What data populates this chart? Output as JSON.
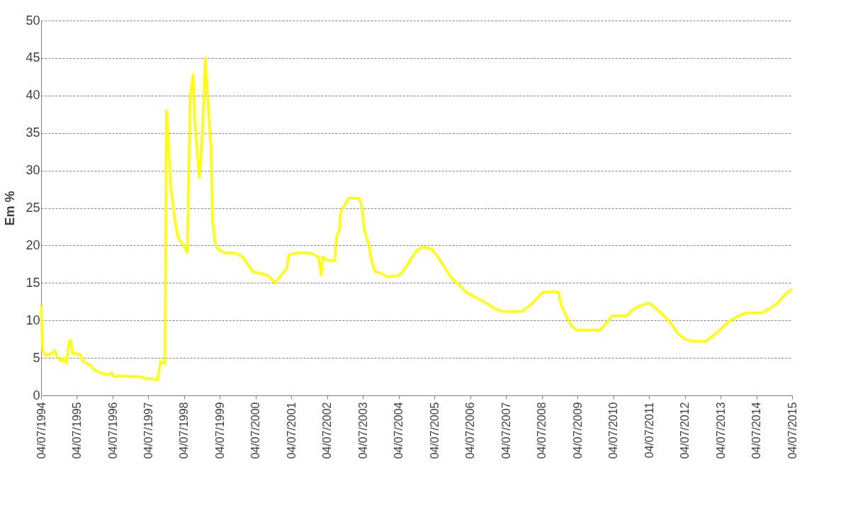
{
  "chart_data": {
    "type": "line",
    "ylabel": "Em %",
    "x": [
      "1994-07-04",
      "1994-07-19",
      "1994-08-19",
      "1994-10-19",
      "1994-11-19",
      "1994-12-19",
      "1995-02-04",
      "1995-02-19",
      "1995-03-19",
      "1995-04-04",
      "1995-04-19",
      "1995-05-04",
      "1995-05-19",
      "1995-08-04",
      "1995-09-04",
      "1995-11-19",
      "1995-12-19",
      "1996-03-04",
      "1996-05-19",
      "1996-06-19",
      "1996-07-19",
      "1996-10-04",
      "1997-01-19",
      "1997-04-04",
      "1997-06-19",
      "1997-08-19",
      "1997-10-04",
      "1997-11-04",
      "1997-12-19",
      "1998-01-04",
      "1998-01-19",
      "1998-02-19",
      "1998-04-04",
      "1998-05-04",
      "1998-07-19",
      "1998-08-04",
      "1998-09-04",
      "1998-10-04",
      "1998-10-19",
      "1998-12-04",
      "1998-12-19",
      "1999-01-19",
      "1999-02-04",
      "1999-03-04",
      "1999-04-04",
      "1999-04-19",
      "1999-05-19",
      "1999-06-19",
      "1999-08-19",
      "1999-12-04",
      "2000-02-19",
      "2000-06-04",
      "2000-11-04",
      "2001-01-19",
      "2001-03-19",
      "2001-05-19",
      "2001-06-04",
      "2001-08-19",
      "2002-01-04",
      "2002-04-04",
      "2002-05-04",
      "2002-05-19",
      "2002-07-04",
      "2002-09-19",
      "2002-10-04",
      "2002-11-04",
      "2002-11-19",
      "2003-01-04",
      "2003-02-04",
      "2003-05-19",
      "2003-06-19",
      "2003-07-19",
      "2003-09-04",
      "2003-09-19",
      "2003-11-04",
      "2004-01-19",
      "2004-03-04",
      "2004-07-04",
      "2004-08-19",
      "2004-10-04",
      "2004-11-19",
      "2005-01-04",
      "2005-03-04",
      "2005-06-04",
      "2005-08-04",
      "2005-10-19",
      "2005-12-19",
      "2006-03-04",
      "2006-05-19",
      "2006-08-04",
      "2006-11-19",
      "2007-03-19",
      "2007-05-19",
      "2007-12-19",
      "2008-03-04",
      "2008-05-19",
      "2008-07-19",
      "2008-12-19",
      "2009-01-19",
      "2009-03-19",
      "2009-05-04",
      "2009-07-04",
      "2010-02-19",
      "2010-04-19",
      "2010-06-19",
      "2010-11-19",
      "2011-01-04",
      "2011-03-19",
      "2011-06-04",
      "2011-07-04",
      "2011-09-19",
      "2011-12-04",
      "2012-02-19",
      "2012-04-19",
      "2012-07-04",
      "2012-09-19",
      "2013-02-04",
      "2013-04-19",
      "2013-07-04",
      "2013-09-19",
      "2014-01-04",
      "2014-03-19",
      "2014-09-04",
      "2014-11-19",
      "2015-02-04",
      "2015-04-19",
      "2015-07-04"
    ],
    "series": [
      {
        "color": "#ffff00",
        "values": [
          12,
          6,
          5.3,
          5.6,
          6,
          5,
          4.5,
          5,
          4.3,
          6,
          7.3,
          7.3,
          5.6,
          5.5,
          4.5,
          4,
          3.5,
          3,
          2.7,
          3,
          2.5,
          2.6,
          2.5,
          2.5,
          2.2,
          2.2,
          2,
          4.5,
          4.2,
          38,
          35,
          27.5,
          23,
          21,
          19.5,
          19,
          40,
          42.8,
          37,
          29,
          31,
          39,
          45,
          39,
          33,
          23.5,
          20,
          19.5,
          19,
          19,
          18.5,
          16.5,
          16,
          15,
          16,
          17,
          18.7,
          19,
          19,
          18.5,
          16,
          18.5,
          18,
          18,
          21,
          22,
          24.5,
          25.5,
          26.3,
          26.3,
          25.5,
          22,
          20,
          18.5,
          16.5,
          16.2,
          15.8,
          16,
          16.6,
          17.5,
          18.5,
          19.3,
          19.8,
          19.5,
          18.5,
          17,
          15.7,
          14.8,
          13.8,
          13.2,
          12.5,
          11.5,
          11.2,
          11.2,
          12,
          13,
          13.8,
          13.8,
          12,
          10.3,
          9.2,
          8.7,
          8.7,
          9.6,
          10.6,
          10.6,
          11.3,
          11.9,
          12.2,
          12.3,
          11.5,
          10.6,
          9.5,
          8.3,
          7.5,
          7.2,
          7.2,
          8,
          8.8,
          9.8,
          10.6,
          11,
          11,
          11.6,
          12.3,
          13.4,
          14.2
        ]
      }
    ],
    "xlim": [
      "1994-07-04",
      "2015-07-04"
    ],
    "xticks": [
      {
        "value": "1994-07-04",
        "label": "04/07/1994"
      },
      {
        "value": "1995-07-04",
        "label": "04/07/1995"
      },
      {
        "value": "1996-07-04",
        "label": "04/07/1996"
      },
      {
        "value": "1997-07-04",
        "label": "04/07/1997"
      },
      {
        "value": "1998-07-04",
        "label": "04/07/1998"
      },
      {
        "value": "1999-07-04",
        "label": "04/07/1999"
      },
      {
        "value": "2000-07-04",
        "label": "04/07/2000"
      },
      {
        "value": "2001-07-04",
        "label": "04/07/2001"
      },
      {
        "value": "2002-07-04",
        "label": "04/07/2002"
      },
      {
        "value": "2003-07-04",
        "label": "04/07/2003"
      },
      {
        "value": "2004-07-04",
        "label": "04/07/2004"
      },
      {
        "value": "2005-07-04",
        "label": "04/07/2005"
      },
      {
        "value": "2006-07-04",
        "label": "04/07/2006"
      },
      {
        "value": "2007-07-04",
        "label": "04/07/2007"
      },
      {
        "value": "2008-07-04",
        "label": "04/07/2008"
      },
      {
        "value": "2009-07-04",
        "label": "04/07/2009"
      },
      {
        "value": "2010-07-04",
        "label": "04/07/2010"
      },
      {
        "value": "2011-07-04",
        "label": "04/07/2011"
      },
      {
        "value": "2012-07-04",
        "label": "04/07/2012"
      },
      {
        "value": "2013-07-04",
        "label": "04/07/2013"
      },
      {
        "value": "2014-07-04",
        "label": "04/07/2014"
      },
      {
        "value": "2015-07-04",
        "label": "04/07/2015"
      }
    ],
    "ylim": [
      0,
      50
    ],
    "yticks": [
      0,
      5,
      10,
      15,
      20,
      25,
      30,
      35,
      40,
      45,
      50
    ],
    "grid": "y",
    "marker": "none",
    "line_style": "solid",
    "legend": false
  }
}
